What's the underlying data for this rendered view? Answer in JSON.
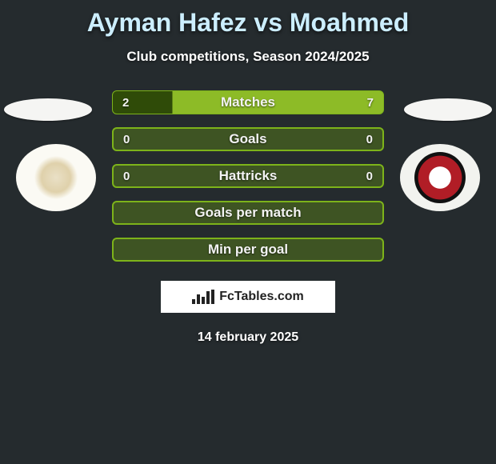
{
  "colors": {
    "background": "#252b2e",
    "title": "#cceeff",
    "text": "#ffffff",
    "bar_border": "#7db31a",
    "bar_split_left": "#2f4b08",
    "bar_split_right": "#8dbb27",
    "bar_plain": "#3e5423",
    "brand_bg": "#ffffff",
    "brand_text": "#222222"
  },
  "title": "Ayman Hafez vs Moahmed",
  "subtitle": "Club competitions, Season 2024/2025",
  "bars": [
    {
      "label": "Matches",
      "left": "2",
      "right": "7",
      "style": "split",
      "split_pct": 22
    },
    {
      "label": "Goals",
      "left": "0",
      "right": "0",
      "style": "plain"
    },
    {
      "label": "Hattricks",
      "left": "0",
      "right": "0",
      "style": "plain"
    },
    {
      "label": "Goals per match",
      "left": "",
      "right": "",
      "style": "plain"
    },
    {
      "label": "Min per goal",
      "left": "",
      "right": "",
      "style": "plain"
    }
  ],
  "clubs": {
    "left": {
      "name": "club-left",
      "bg": "#fbfaf4",
      "inner": "#c7ad6b"
    },
    "right": {
      "name": "club-right",
      "bg": "#f2f3ef",
      "inner": "#b11d26"
    }
  },
  "brand": "FcTables.com",
  "date": "14 february 2025"
}
